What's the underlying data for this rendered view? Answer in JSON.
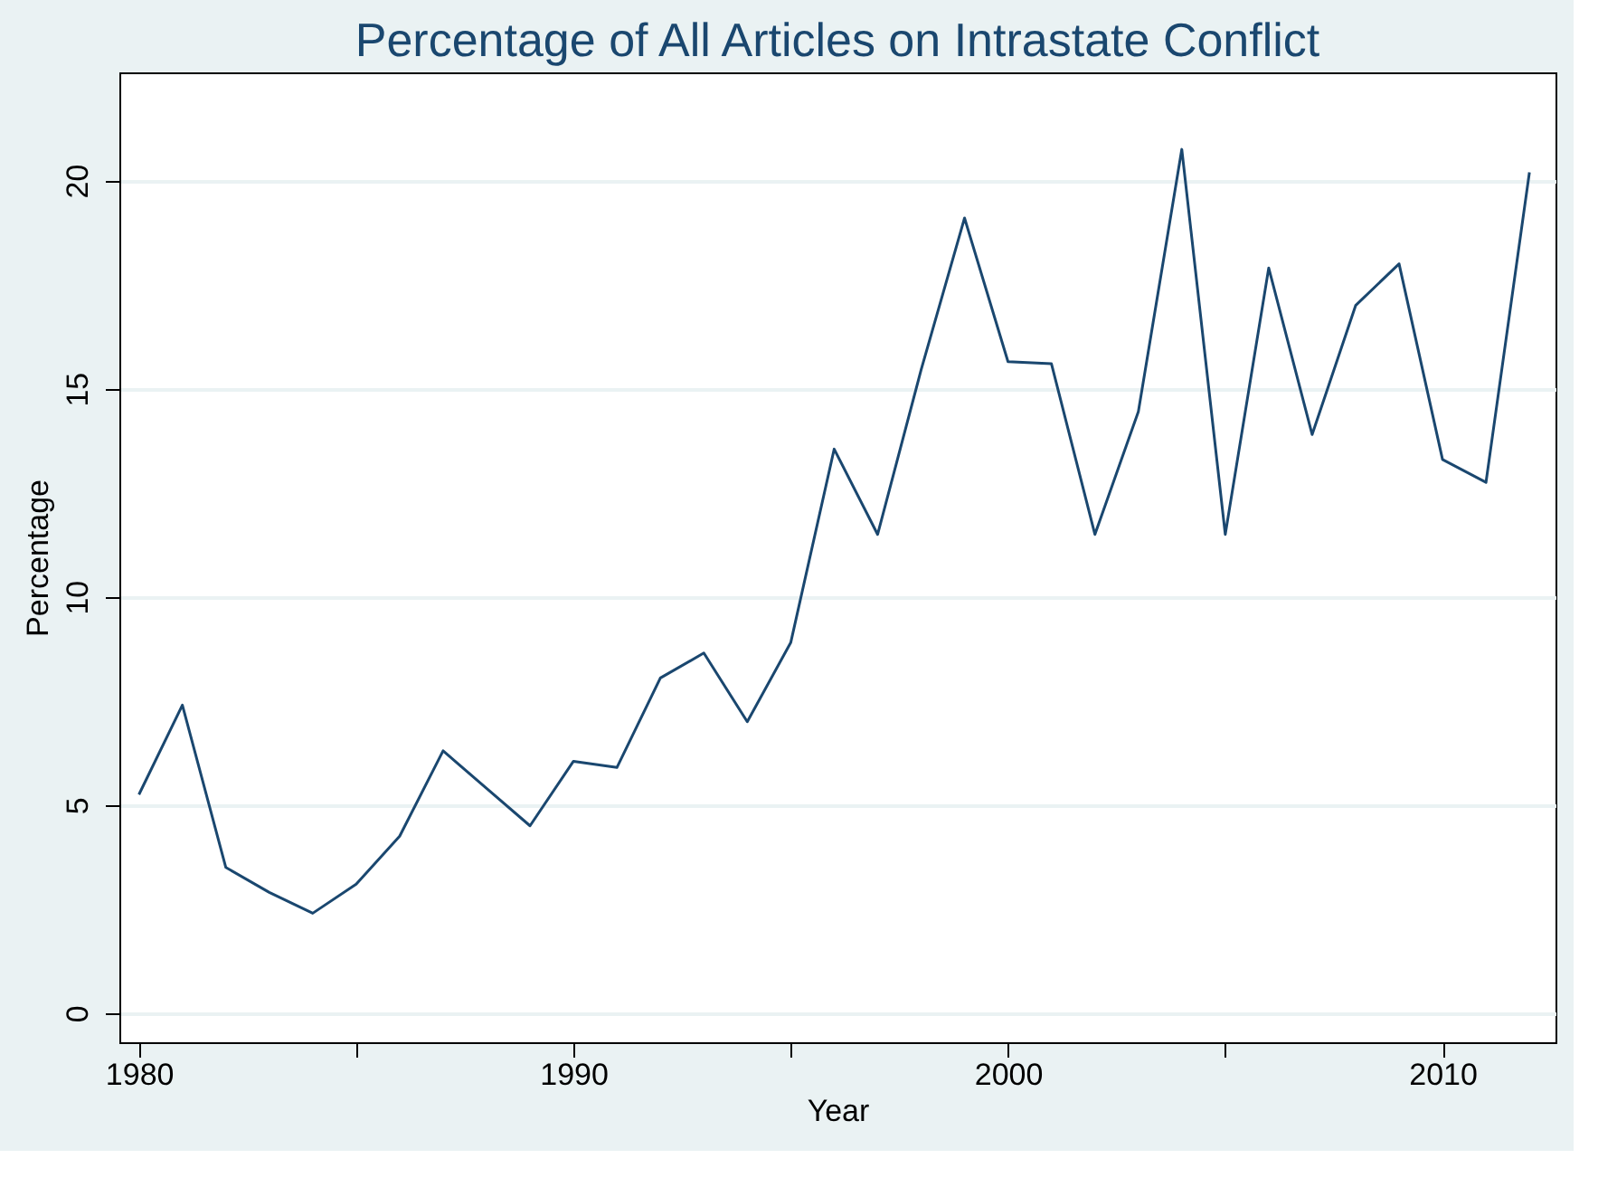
{
  "chart_data": {
    "type": "line",
    "title": "Percentage of All Articles on Intrastate Conflict",
    "xlabel": "Year",
    "ylabel": "Percentage",
    "x": [
      1980,
      1981,
      1982,
      1983,
      1984,
      1985,
      1986,
      1987,
      1988,
      1989,
      1990,
      1991,
      1992,
      1993,
      1994,
      1995,
      1996,
      1997,
      1998,
      1999,
      2000,
      2001,
      2002,
      2003,
      2004,
      2005,
      2006,
      2007,
      2008,
      2009,
      2010,
      2011,
      2012
    ],
    "series": [
      {
        "color": "#1a476f",
        "values": [
          5.25,
          7.4,
          3.5,
          2.9,
          2.4,
          3.1,
          4.25,
          6.3,
          5.4,
          4.5,
          6.05,
          5.9,
          8.05,
          8.65,
          7.0,
          8.9,
          13.55,
          11.5,
          15.45,
          19.1,
          15.65,
          15.6,
          11.5,
          14.45,
          20.75,
          11.5,
          17.9,
          13.9,
          17.0,
          18.0,
          13.3,
          12.75,
          20.2
        ]
      }
    ],
    "xlim": [
      1979.55,
      2012.6
    ],
    "ylim": [
      -0.7,
      22.6
    ],
    "xticks": [
      1980,
      {
        "value": 1985,
        "label": null
      },
      1990,
      {
        "value": 1995,
        "label": null
      },
      2000,
      {
        "value": 2005,
        "label": null
      },
      2010
    ],
    "yticks": [
      0,
      5,
      10,
      15,
      20
    ],
    "grid": "y",
    "marker": "none",
    "line_style": "solid"
  }
}
